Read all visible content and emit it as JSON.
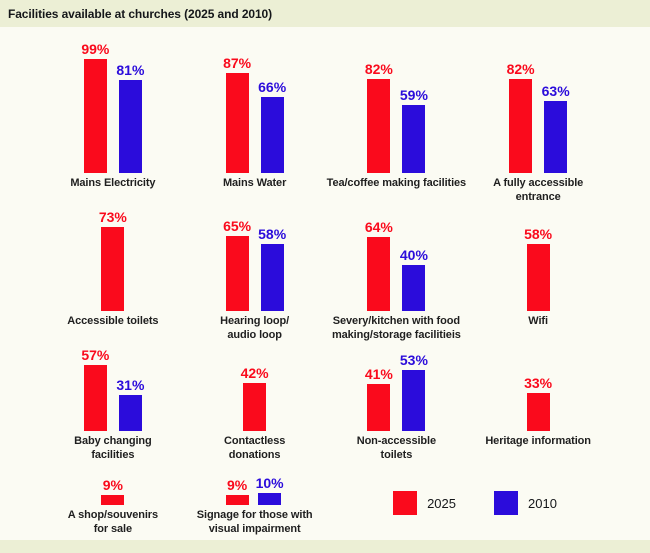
{
  "header": {
    "title": "Facilities available at churches (2025 and 2010)"
  },
  "colors": {
    "red_2025": "#FA0A1C",
    "blue_2010": "#2B0CDB",
    "title_bar_bg": "#ECEFD5",
    "page_bg": "#FBFBF3",
    "label_text": "#1F1F1F"
  },
  "legend": {
    "items": [
      {
        "label": "2025",
        "color": "#FA0A1C"
      },
      {
        "label": "2010",
        "color": "#2B0CDB"
      }
    ]
  },
  "chart_data": {
    "type": "bar",
    "title": "Facilities available at churches (2025 and 2010)",
    "unit": "%",
    "value_suffix": "%",
    "ylim": [
      0,
      100
    ],
    "grid": false,
    "legend_position": "bottom-right",
    "series_names": [
      "2025",
      "2010"
    ],
    "series_colors": {
      "2025": "#FA0A1C",
      "2010": "#2B0CDB"
    },
    "row_sizes": [
      4,
      4,
      4,
      2
    ],
    "categories": [
      {
        "label_lines": [
          "Mains Electricity"
        ],
        "values": {
          "2025": 99,
          "2010": 81
        }
      },
      {
        "label_lines": [
          "Mains Water"
        ],
        "values": {
          "2025": 87,
          "2010": 66
        }
      },
      {
        "label_lines": [
          "Tea/coffee making facilities"
        ],
        "values": {
          "2025": 82,
          "2010": 59
        }
      },
      {
        "label_lines": [
          "A fully accessible",
          "entrance"
        ],
        "values": {
          "2025": 82,
          "2010": 63
        }
      },
      {
        "label_lines": [
          "Accessible toilets"
        ],
        "values": {
          "2025": 73
        }
      },
      {
        "label_lines": [
          "Hearing loop/",
          "audio loop"
        ],
        "values": {
          "2025": 65,
          "2010": 58
        }
      },
      {
        "label_lines": [
          "Severy/kitchen with food",
          "making/storage facilitieis"
        ],
        "values": {
          "2025": 64,
          "2010": 40
        }
      },
      {
        "label_lines": [
          "Wifi"
        ],
        "values": {
          "2025": 58
        }
      },
      {
        "label_lines": [
          "Baby changing",
          "facilities"
        ],
        "values": {
          "2025": 57,
          "2010": 31
        }
      },
      {
        "label_lines": [
          "Contactless",
          "donations"
        ],
        "values": {
          "2025": 42
        }
      },
      {
        "label_lines": [
          "Non-accessible",
          "toilets"
        ],
        "values": {
          "2025": 41,
          "2010": 53
        }
      },
      {
        "label_lines": [
          "Heritage information"
        ],
        "values": {
          "2025": 33
        }
      },
      {
        "label_lines": [
          "A shop/souvenirs",
          "for sale"
        ],
        "values": {
          "2025": 9
        }
      },
      {
        "label_lines": [
          "Signage for those with",
          "visual impairment"
        ],
        "values": {
          "2025": 9,
          "2010": 10
        }
      }
    ]
  }
}
